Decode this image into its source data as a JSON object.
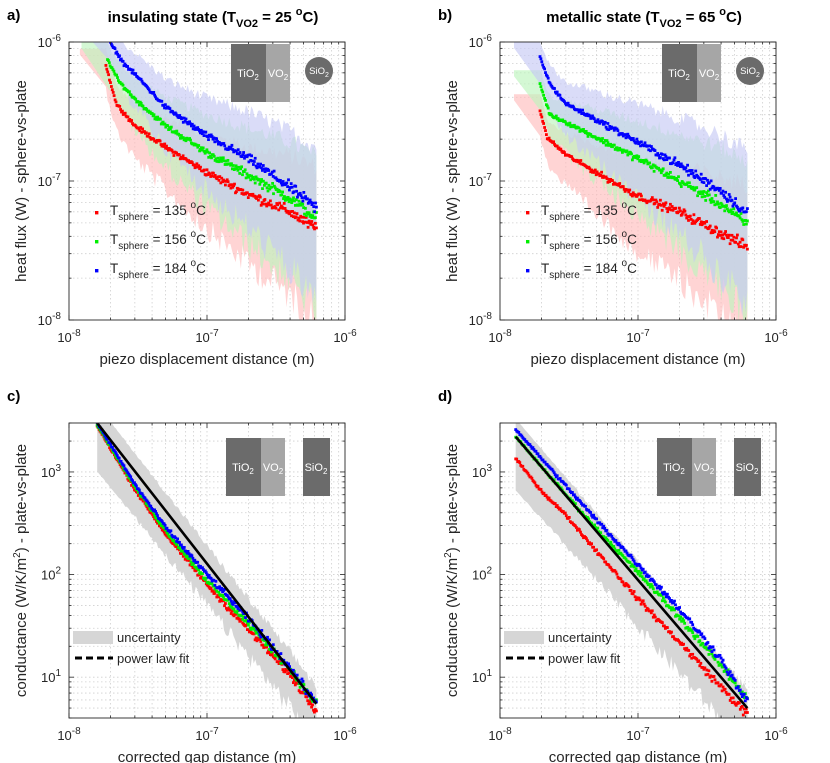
{
  "panels": [
    {
      "id": "a",
      "label": "a)",
      "title": "insulating state (T",
      "title_sub": "VO2",
      "title_value": " = 25",
      "title_unit": "C)",
      "xlabel": "piezo displacement distance (m)",
      "ylabel": "heat flux (W)  -  sphere-vs-plate",
      "inset": {
        "tio2": "TiO",
        "vo2": "VO",
        "sio2": "SiO",
        "sub": "2",
        "sio2_shape": "circle"
      },
      "legend_kind": "series"
    },
    {
      "id": "b",
      "label": "b)",
      "title": "metallic state (T",
      "title_sub": "VO2",
      "title_value": " = 65",
      "title_unit": "C)",
      "xlabel": "piezo displacement distance (m)",
      "ylabel": "heat flux (W)  -  sphere-vs-plate",
      "inset": {
        "tio2": "TiO",
        "vo2": "VO",
        "sio2": "SiO",
        "sub": "2",
        "sio2_shape": "circle"
      },
      "legend_kind": "series"
    },
    {
      "id": "c",
      "label": "c)",
      "xlabel": "corrected gap distance (m)",
      "ylabel": "conductance (W/K/m",
      "ylabel_sup": "2",
      "ylabel_tail": ")  -  plate-vs-plate",
      "inset": {
        "tio2": "TiO",
        "vo2": "VO",
        "sio2": "SiO",
        "sub": "2",
        "sio2_shape": "box"
      },
      "legend_kind": "fit",
      "legend": {
        "uncertainty": "uncertainty",
        "fit": "power law fit"
      }
    },
    {
      "id": "d",
      "label": "d)",
      "xlabel": "corrected gap distance (m)",
      "ylabel": "conductance (W/K/m",
      "ylabel_sup": "2",
      "ylabel_tail": ")  -  plate-vs-plate",
      "inset": {
        "tio2": "TiO",
        "vo2": "VO",
        "sio2": "SiO",
        "sub": "2",
        "sio2_shape": "box"
      },
      "legend_kind": "fit",
      "legend": {
        "uncertainty": "uncertainty",
        "fit": "power law fit"
      }
    }
  ],
  "series_legend": {
    "prefix": "T",
    "sub": "sphere",
    "items": [
      {
        "value": " = 135 ",
        "unit": "C",
        "color": "#ff0000"
      },
      {
        "value": " = 156 ",
        "unit": "C",
        "color": "#00ee00"
      },
      {
        "value": " = 184 ",
        "unit": "C",
        "color": "#0000ff"
      }
    ]
  },
  "degree_mark": "o",
  "chart_data": [
    {
      "panel": "a",
      "type": "scatter",
      "xscale": "log",
      "yscale": "log",
      "xlim": [
        1e-08,
        1e-06
      ],
      "ylim": [
        1e-08,
        1e-06
      ],
      "xticks": [
        {
          "base": "10",
          "exp": "-8"
        },
        {
          "base": "10",
          "exp": "-7"
        },
        {
          "base": "10",
          "exp": "-6"
        }
      ],
      "yticks": [
        {
          "base": "10",
          "exp": "-8"
        },
        {
          "base": "10",
          "exp": "-7"
        },
        {
          "base": "10",
          "exp": "-6"
        }
      ],
      "series": [
        {
          "name": "T_sphere = 135 °C",
          "color": "#ff0000",
          "band_color": "#ffbdbd",
          "x_range": [
            1.85e-08,
            6.2e-07
          ],
          "points": [
            [
              1.85e-08,
              6.8e-07
            ],
            [
              2.2e-08,
              3.6e-07
            ],
            [
              3e-08,
              2.5e-07
            ],
            [
              5e-08,
              1.75e-07
            ],
            [
              1e-07,
              1.15e-07
            ],
            [
              2e-07,
              8e-08
            ],
            [
              4e-07,
              6e-08
            ],
            [
              6e-07,
              4.6e-08
            ]
          ]
        },
        {
          "name": "T_sphere = 156 °C",
          "color": "#00ee00",
          "band_color": "#bdf5bd",
          "x_range": [
            1.9e-08,
            6.2e-07
          ],
          "points": [
            [
              1.9e-08,
              7.5e-07
            ],
            [
              2.3e-08,
              5.2e-07
            ],
            [
              3e-08,
              3.9e-07
            ],
            [
              5e-08,
              2.5e-07
            ],
            [
              1e-07,
              1.6e-07
            ],
            [
              2e-07,
              1.1e-07
            ],
            [
              4e-07,
              7.5e-08
            ],
            [
              6e-07,
              5.5e-08
            ]
          ]
        },
        {
          "name": "T_sphere = 184 °C",
          "color": "#0000ff",
          "band_color": "#c6caf5",
          "x_range": [
            2e-08,
            6.2e-07
          ],
          "points": [
            [
              2e-08,
              9.8e-07
            ],
            [
              2.5e-08,
              7e-07
            ],
            [
              3.2e-08,
              5.5e-07
            ],
            [
              5e-08,
              3.4e-07
            ],
            [
              1e-07,
              2.1e-07
            ],
            [
              2e-07,
              1.45e-07
            ],
            [
              4e-07,
              9e-08
            ],
            [
              6e-07,
              6.5e-08
            ]
          ]
        }
      ]
    },
    {
      "panel": "b",
      "type": "scatter",
      "xscale": "log",
      "yscale": "log",
      "xlim": [
        1e-08,
        1e-06
      ],
      "ylim": [
        1e-08,
        1e-06
      ],
      "xticks": [
        {
          "base": "10",
          "exp": "-8"
        },
        {
          "base": "10",
          "exp": "-7"
        },
        {
          "base": "10",
          "exp": "-6"
        }
      ],
      "yticks": [
        {
          "base": "10",
          "exp": "-8"
        },
        {
          "base": "10",
          "exp": "-7"
        },
        {
          "base": "10",
          "exp": "-6"
        }
      ],
      "series": [
        {
          "name": "T_sphere = 135 °C",
          "color": "#ff0000",
          "band_color": "#ffbdbd",
          "x_range": [
            1.95e-08,
            6.2e-07
          ],
          "points": [
            [
              1.95e-08,
              3.2e-07
            ],
            [
              2.2e-08,
              2.05e-07
            ],
            [
              3e-08,
              1.55e-07
            ],
            [
              5e-08,
              1.15e-07
            ],
            [
              1e-07,
              7.8e-08
            ],
            [
              2e-07,
              6e-08
            ],
            [
              4e-07,
              4.2e-08
            ],
            [
              6e-07,
              3.4e-08
            ]
          ]
        },
        {
          "name": "T_sphere = 156 °C",
          "color": "#00ee00",
          "band_color": "#bdf5bd",
          "x_range": [
            1.95e-08,
            6.2e-07
          ],
          "points": [
            [
              1.95e-08,
              5e-07
            ],
            [
              2.3e-08,
              3e-07
            ],
            [
              3e-08,
              2.65e-07
            ],
            [
              5e-08,
              2.05e-07
            ],
            [
              1e-07,
              1.45e-07
            ],
            [
              2e-07,
              1e-07
            ],
            [
              4e-07,
              6.8e-08
            ],
            [
              6e-07,
              5e-08
            ]
          ]
        },
        {
          "name": "T_sphere = 184 °C",
          "color": "#0000ff",
          "band_color": "#c6caf5",
          "x_range": [
            1.95e-08,
            6.2e-07
          ],
          "points": [
            [
              1.95e-08,
              7.8e-07
            ],
            [
              2.3e-08,
              5e-07
            ],
            [
              3e-08,
              3.6e-07
            ],
            [
              5e-08,
              2.75e-07
            ],
            [
              1e-07,
              1.9e-07
            ],
            [
              2e-07,
              1.3e-07
            ],
            [
              4e-07,
              8.5e-08
            ],
            [
              6e-07,
              6e-08
            ]
          ]
        }
      ]
    },
    {
      "panel": "c",
      "type": "scatter",
      "xscale": "log",
      "yscale": "log",
      "xlim": [
        1e-08,
        1e-06
      ],
      "ylim": [
        4,
        3000
      ],
      "xticks": [
        {
          "base": "10",
          "exp": "-8"
        },
        {
          "base": "10",
          "exp": "-7"
        },
        {
          "base": "10",
          "exp": "-6"
        }
      ],
      "yticks": [
        {
          "base": "10",
          "exp": "1",
          "value": 10
        },
        {
          "base": "10",
          "exp": "2",
          "value": 100
        },
        {
          "base": "10",
          "exp": "3",
          "value": 1000
        }
      ],
      "fit": {
        "x_range": [
          1.6e-08,
          6.2e-07
        ],
        "y_at_start": 3000,
        "y_at_end": 5.5
      },
      "uncertainty_band": {
        "lower_factor": 0.45,
        "upper_factor": 1.5
      },
      "series": [
        {
          "name": "T_sphere = 135 °C",
          "color": "#ff0000",
          "x_range": [
            1.6e-08,
            6.2e-07
          ],
          "points": [
            [
              1.6e-08,
              2800
            ],
            [
              3e-08,
              680
            ],
            [
              5e-08,
              250
            ],
            [
              1e-07,
              80
            ],
            [
              2e-07,
              29
            ],
            [
              4e-07,
              10.5
            ],
            [
              6e-07,
              5
            ]
          ]
        },
        {
          "name": "T_sphere = 156 °C",
          "color": "#00ee00",
          "x_range": [
            1.6e-08,
            6.2e-07
          ],
          "points": [
            [
              1.6e-08,
              2900
            ],
            [
              3e-08,
              720
            ],
            [
              5e-08,
              270
            ],
            [
              1e-07,
              88
            ],
            [
              2e-07,
              33
            ],
            [
              4e-07,
              12
            ],
            [
              6e-07,
              5.8
            ]
          ]
        },
        {
          "name": "T_sphere = 184 °C",
          "color": "#0000ff",
          "x_range": [
            1.6e-08,
            6.2e-07
          ],
          "points": [
            [
              1.6e-08,
              3000
            ],
            [
              3e-08,
              760
            ],
            [
              5e-08,
              290
            ],
            [
              1e-07,
              100
            ],
            [
              2e-07,
              37
            ],
            [
              4e-07,
              12.5
            ],
            [
              6e-07,
              5.8
            ]
          ]
        }
      ],
      "legend_labels": [
        "uncertainty",
        "power law fit"
      ]
    },
    {
      "panel": "d",
      "type": "scatter",
      "xscale": "log",
      "yscale": "log",
      "xlim": [
        1e-08,
        1e-06
      ],
      "ylim": [
        4,
        3000
      ],
      "xticks": [
        {
          "base": "10",
          "exp": "-8"
        },
        {
          "base": "10",
          "exp": "-7"
        },
        {
          "base": "10",
          "exp": "-6"
        }
      ],
      "yticks": [
        {
          "base": "10",
          "exp": "1",
          "value": 10
        },
        {
          "base": "10",
          "exp": "2",
          "value": 100
        },
        {
          "base": "10",
          "exp": "3",
          "value": 1000
        }
      ],
      "fit": {
        "x_range": [
          1.3e-08,
          6.2e-07
        ],
        "y_at_start": 2200,
        "y_at_end": 5
      },
      "uncertainty_band": {
        "lower_factor": 0.4,
        "upper_factor": 1.5
      },
      "series": [
        {
          "name": "T_sphere = 135 °C",
          "color": "#ff0000",
          "x_range": [
            1.3e-08,
            6.2e-07
          ],
          "points": [
            [
              1.3e-08,
              1350
            ],
            [
              2e-08,
              650
            ],
            [
              3e-08,
              380
            ],
            [
              5e-08,
              170
            ],
            [
              1e-07,
              58
            ],
            [
              2e-07,
              22
            ],
            [
              4e-07,
              8
            ],
            [
              6e-07,
              4.5
            ]
          ]
        },
        {
          "name": "T_sphere = 156 °C",
          "color": "#00ee00",
          "x_range": [
            1.3e-08,
            6.2e-07
          ],
          "points": [
            [
              1.3e-08,
              2200
            ],
            [
              3e-08,
              600
            ],
            [
              5e-08,
              280
            ],
            [
              1e-07,
              105
            ],
            [
              2e-07,
              38
            ],
            [
              4e-07,
              13
            ],
            [
              6e-07,
              6.5
            ]
          ]
        },
        {
          "name": "T_sphere = 184 °C",
          "color": "#0000ff",
          "x_range": [
            1.3e-08,
            6.2e-07
          ],
          "points": [
            [
              1.3e-08,
              2600
            ],
            [
              3e-08,
              730
            ],
            [
              5e-08,
              340
            ],
            [
              1e-07,
              125
            ],
            [
              2e-07,
              46
            ],
            [
              4e-07,
              15
            ],
            [
              6e-07,
              6
            ]
          ]
        }
      ],
      "legend_labels": [
        "uncertainty",
        "power law fit"
      ]
    }
  ]
}
